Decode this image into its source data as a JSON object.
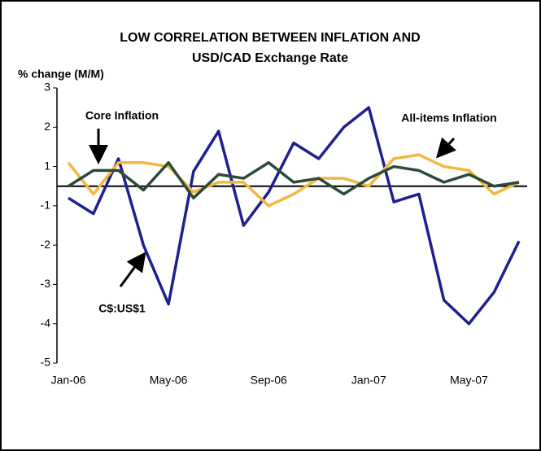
{
  "chart_data": {
    "type": "line",
    "title": "LOW CORRELATION BETWEEN INFLATION AND",
    "subtitle": "USD/CAD Exchange Rate",
    "y_label": "% change (M/M)",
    "categories": [
      "Jan-06",
      null,
      null,
      null,
      "May-06",
      null,
      null,
      null,
      "Sep-06",
      null,
      null,
      null,
      "Jan-07",
      null,
      null,
      null,
      "May-07",
      null,
      null
    ],
    "series": [
      {
        "name": "C$:US$1",
        "color": "#1f1f8f",
        "values": [
          -0.6,
          -1.2,
          1.2,
          -2.0,
          -3.5,
          0.75,
          1.9,
          -1.5,
          -0.3,
          1.6,
          1.2,
          2.0,
          2.5,
          -0.8,
          -0.4,
          -3.4,
          -4.0,
          -3.2,
          -1.9
        ]
      },
      {
        "name": "All-items Inflation",
        "color": "#f0b840",
        "values": [
          1.1,
          -0.4,
          1.1,
          1.1,
          1.0,
          -0.3,
          0.2,
          0.2,
          -1.0,
          -0.4,
          0.4,
          0.4,
          0,
          1.2,
          1.3,
          1.0,
          0.8,
          -0.4,
          0.2
        ]
      },
      {
        "name": "Core Inflation",
        "color": "#2c4a3a",
        "values": [
          0,
          0.8,
          0.8,
          -0.2,
          1.1,
          -0.6,
          0.6,
          0.4,
          1.1,
          0.2,
          0.4,
          -0.4,
          0.4,
          1.0,
          0.8,
          0.2,
          0.6,
          0,
          0.2
        ]
      }
    ],
    "ylim": [
      -5,
      3
    ],
    "yticks": [
      3,
      2,
      1,
      -1,
      -2,
      -3,
      -4,
      -5
    ]
  }
}
